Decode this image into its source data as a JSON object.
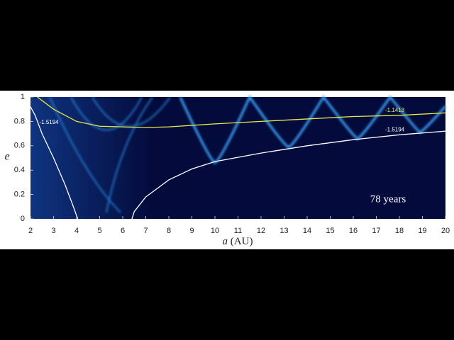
{
  "chart_data": {
    "type": "contour",
    "annotation": "78 years",
    "xlabel_var": "a",
    "xlabel_unit": "(AU)",
    "ylabel": "e",
    "xlim": [
      2,
      20
    ],
    "xticks": [
      2,
      3,
      4,
      5,
      6,
      7,
      8,
      9,
      10,
      11,
      12,
      13,
      14,
      15,
      16,
      17,
      18,
      19,
      20
    ],
    "ylim": [
      0,
      1
    ],
    "yticks": [
      0,
      0.2,
      0.4,
      0.6,
      0.8,
      1
    ],
    "series": [
      {
        "name": "-1.5194",
        "color": "#ffffff",
        "x": [
          2,
          2.2,
          2.5,
          3,
          3.5,
          3.8,
          4.05
        ],
        "values": [
          0.92,
          0.85,
          0.7,
          0.5,
          0.28,
          0.13,
          0
        ]
      },
      {
        "name": "-1.1413",
        "color": "#e8e84a",
        "x": [
          2.3,
          3,
          4,
          5,
          7,
          8,
          10,
          12,
          14,
          16,
          18,
          20
        ],
        "values": [
          1,
          0.9,
          0.8,
          0.76,
          0.75,
          0.755,
          0.78,
          0.8,
          0.82,
          0.84,
          0.85,
          0.87
        ]
      },
      {
        "name": "-1.5194",
        "color": "#ffffff",
        "x": [
          6.4,
          6.5,
          7,
          8,
          9,
          10,
          12,
          14,
          16,
          18,
          20
        ],
        "values": [
          0,
          0.06,
          0.18,
          0.32,
          0.41,
          0.47,
          0.54,
          0.6,
          0.65,
          0.69,
          0.72
        ]
      }
    ]
  }
}
